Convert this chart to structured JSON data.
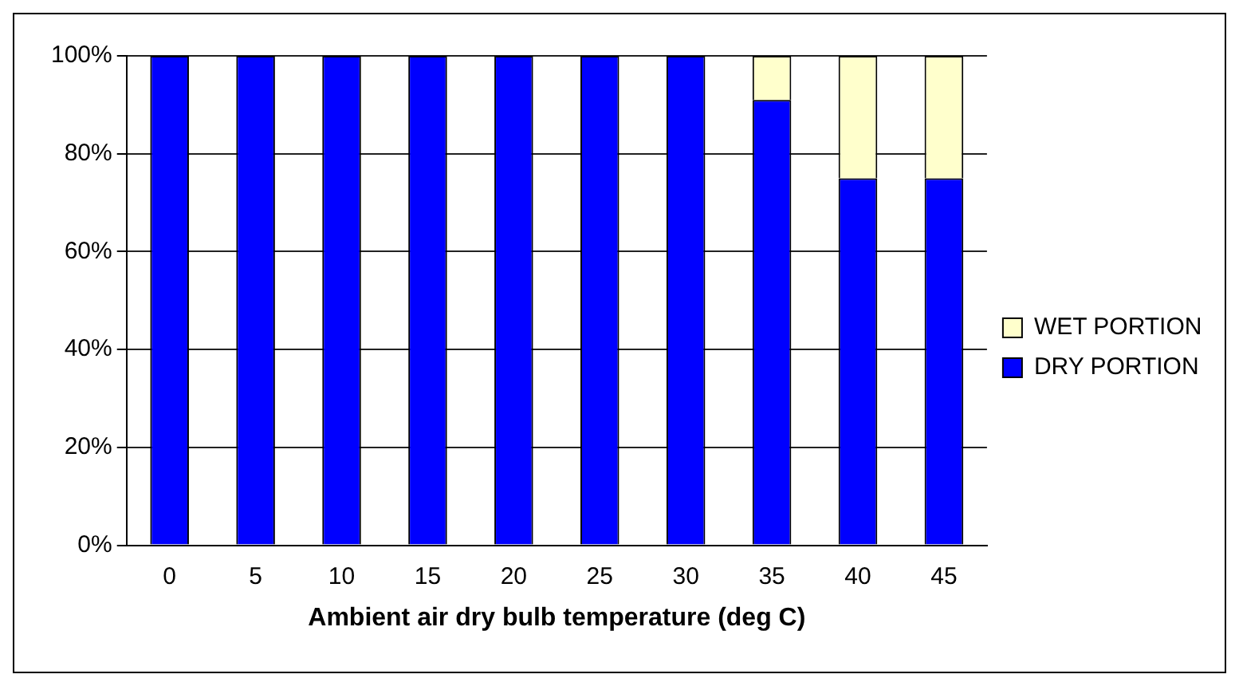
{
  "chart_data": {
    "type": "bar",
    "stacked": true,
    "xlabel": "Ambient air dry bulb temperature (deg C)",
    "categories": [
      "0",
      "5",
      "10",
      "15",
      "20",
      "25",
      "30",
      "35",
      "40",
      "45"
    ],
    "series": [
      {
        "name": "DRY PORTION",
        "color": "#0000ff",
        "values": [
          100,
          100,
          100,
          100,
          100,
          100,
          100,
          91,
          75,
          75
        ]
      },
      {
        "name": "WET PORTION",
        "color": "#ffffcc",
        "values": [
          0,
          0,
          0,
          0,
          0,
          0,
          0,
          9,
          25,
          25
        ]
      }
    ],
    "ylim": [
      0,
      100
    ],
    "yticks": [
      {
        "value": 0,
        "label": "0%"
      },
      {
        "value": 20,
        "label": "20%"
      },
      {
        "value": 40,
        "label": "40%"
      },
      {
        "value": 60,
        "label": "60%"
      },
      {
        "value": 80,
        "label": "80%"
      },
      {
        "value": 100,
        "label": "100%"
      }
    ],
    "grid": "y",
    "legend": "right"
  }
}
